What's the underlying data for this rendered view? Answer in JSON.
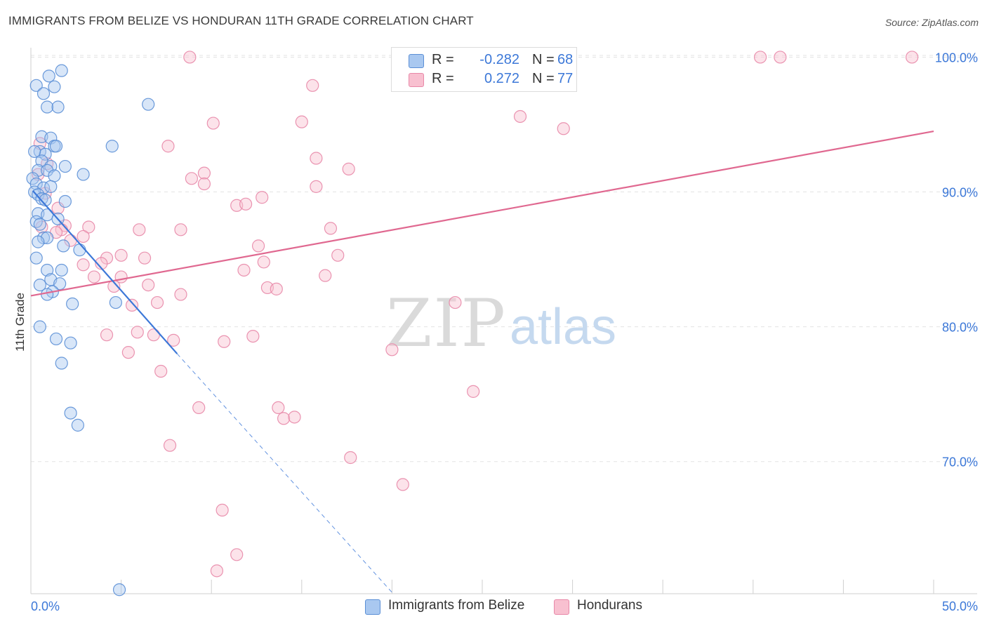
{
  "header": {
    "title": "IMMIGRANTS FROM BELIZE VS HONDURAN 11TH GRADE CORRELATION CHART",
    "source": "Source: ZipAtlas.com"
  },
  "watermark": {
    "zip": "ZIP",
    "atlas": "atlas"
  },
  "legend_top": [
    {
      "r_label": "R =",
      "r_value": "-0.282",
      "n_label": "N =",
      "n_value": "68"
    },
    {
      "r_label": "R =",
      "r_value": "0.272",
      "n_label": "N =",
      "n_value": "77"
    }
  ],
  "legend_bottom": [
    {
      "label": "Immigrants from Belize"
    },
    {
      "label": "Hondurans"
    }
  ],
  "colors": {
    "belize_fill": "#a9c8f0",
    "belize_stroke": "#5b8fd6",
    "belize_line": "#3c78d8",
    "honduran_fill": "#f8c0d0",
    "honduran_stroke": "#e888a8",
    "honduran_line": "#e06890",
    "tick_label": "#3c78d8",
    "grid": "#e3e3e3"
  },
  "chart_data": {
    "type": "scatter",
    "title": "IMMIGRANTS FROM BELIZE VS HONDURAN 11TH GRADE CORRELATION CHART",
    "xlabel": "",
    "ylabel": "11th Grade",
    "xlim": [
      0,
      50
    ],
    "ylim": [
      60.2,
      100.7
    ],
    "x_tick_labels": [
      "0.0%",
      "50.0%"
    ],
    "y_ticks": [
      70,
      80,
      90,
      100
    ],
    "y_tick_labels": [
      "70.0%",
      "80.0%",
      "90.0%",
      "100.0%"
    ],
    "grid": true,
    "legend_position": "top-center",
    "series": [
      {
        "name": "Immigrants from Belize",
        "r": -0.282,
        "n": 68,
        "trend": {
          "x": [
            0.1,
            8.1
          ],
          "y": [
            90.1,
            78.0
          ],
          "dashed_to": [
            20.0,
            60.3
          ]
        },
        "points": [
          [
            0.3,
            97.9
          ],
          [
            1.7,
            99.0
          ],
          [
            1.0,
            98.6
          ],
          [
            0.7,
            97.3
          ],
          [
            1.3,
            97.8
          ],
          [
            0.9,
            96.3
          ],
          [
            1.5,
            96.3
          ],
          [
            6.5,
            96.5
          ],
          [
            0.6,
            94.1
          ],
          [
            1.1,
            94.0
          ],
          [
            0.5,
            93.0
          ],
          [
            0.8,
            92.8
          ],
          [
            1.3,
            93.4
          ],
          [
            1.4,
            93.4
          ],
          [
            4.5,
            93.4
          ],
          [
            0.2,
            93.0
          ],
          [
            0.6,
            92.3
          ],
          [
            0.4,
            91.6
          ],
          [
            1.1,
            91.9
          ],
          [
            1.9,
            91.9
          ],
          [
            0.9,
            91.6
          ],
          [
            1.3,
            91.2
          ],
          [
            2.9,
            91.3
          ],
          [
            0.1,
            91.0
          ],
          [
            0.3,
            90.6
          ],
          [
            0.7,
            90.3
          ],
          [
            1.1,
            90.4
          ],
          [
            0.2,
            90.0
          ],
          [
            0.4,
            89.8
          ],
          [
            0.6,
            89.5
          ],
          [
            0.8,
            89.4
          ],
          [
            1.9,
            89.3
          ],
          [
            0.4,
            88.4
          ],
          [
            0.9,
            88.3
          ],
          [
            1.5,
            88.0
          ],
          [
            0.3,
            87.8
          ],
          [
            0.5,
            87.6
          ],
          [
            0.7,
            86.6
          ],
          [
            0.9,
            86.6
          ],
          [
            0.4,
            86.3
          ],
          [
            1.8,
            86.0
          ],
          [
            2.7,
            85.7
          ],
          [
            0.3,
            85.1
          ],
          [
            0.9,
            84.2
          ],
          [
            1.7,
            84.2
          ],
          [
            1.1,
            83.5
          ],
          [
            1.6,
            83.2
          ],
          [
            0.5,
            83.1
          ],
          [
            1.2,
            82.6
          ],
          [
            0.9,
            82.4
          ],
          [
            4.7,
            81.8
          ],
          [
            2.3,
            81.7
          ],
          [
            0.5,
            80.0
          ],
          [
            1.4,
            79.1
          ],
          [
            2.2,
            78.8
          ],
          [
            1.7,
            77.3
          ],
          [
            2.2,
            73.6
          ],
          [
            2.6,
            72.7
          ],
          [
            4.9,
            60.5
          ]
        ]
      },
      {
        "name": "Hondurans",
        "r": 0.272,
        "n": 77,
        "trend": {
          "x": [
            0.0,
            50.0
          ],
          "y": [
            82.3,
            94.5
          ]
        },
        "points": [
          [
            8.8,
            100.0
          ],
          [
            28.4,
            100.0
          ],
          [
            40.4,
            100.0
          ],
          [
            41.5,
            100.0
          ],
          [
            48.8,
            100.0
          ],
          [
            15.6,
            97.9
          ],
          [
            15.0,
            95.2
          ],
          [
            27.1,
            95.6
          ],
          [
            10.1,
            95.1
          ],
          [
            29.5,
            94.7
          ],
          [
            0.5,
            93.6
          ],
          [
            7.6,
            93.4
          ],
          [
            15.8,
            92.5
          ],
          [
            0.9,
            92.1
          ],
          [
            17.6,
            91.7
          ],
          [
            0.4,
            91.3
          ],
          [
            9.6,
            91.4
          ],
          [
            8.9,
            91.0
          ],
          [
            9.6,
            90.6
          ],
          [
            15.8,
            90.4
          ],
          [
            0.8,
            89.9
          ],
          [
            12.8,
            89.6
          ],
          [
            11.4,
            89.0
          ],
          [
            11.9,
            89.1
          ],
          [
            1.5,
            88.8
          ],
          [
            1.9,
            87.5
          ],
          [
            0.6,
            87.4
          ],
          [
            1.7,
            87.2
          ],
          [
            3.2,
            87.4
          ],
          [
            6.0,
            87.2
          ],
          [
            8.3,
            87.2
          ],
          [
            16.6,
            87.3
          ],
          [
            1.4,
            87.0
          ],
          [
            2.9,
            86.7
          ],
          [
            2.2,
            86.4
          ],
          [
            12.6,
            86.0
          ],
          [
            4.2,
            85.1
          ],
          [
            5.0,
            85.3
          ],
          [
            6.3,
            85.1
          ],
          [
            17.0,
            85.3
          ],
          [
            2.9,
            84.6
          ],
          [
            3.9,
            84.7
          ],
          [
            12.9,
            84.8
          ],
          [
            11.8,
            84.2
          ],
          [
            3.5,
            83.7
          ],
          [
            5.0,
            83.7
          ],
          [
            16.3,
            83.8
          ],
          [
            4.6,
            83.0
          ],
          [
            6.5,
            83.1
          ],
          [
            13.1,
            82.9
          ],
          [
            13.6,
            82.8
          ],
          [
            8.3,
            82.4
          ],
          [
            7.0,
            81.8
          ],
          [
            5.6,
            81.6
          ],
          [
            23.5,
            81.8
          ],
          [
            4.2,
            79.4
          ],
          [
            5.9,
            79.6
          ],
          [
            6.8,
            79.4
          ],
          [
            7.9,
            79.0
          ],
          [
            10.7,
            78.9
          ],
          [
            12.3,
            79.3
          ],
          [
            5.4,
            78.1
          ],
          [
            20.0,
            78.3
          ],
          [
            7.2,
            76.7
          ],
          [
            24.5,
            75.2
          ],
          [
            9.3,
            74.0
          ],
          [
            13.7,
            74.0
          ],
          [
            14.0,
            73.2
          ],
          [
            14.6,
            73.3
          ],
          [
            7.7,
            71.2
          ],
          [
            17.7,
            70.3
          ],
          [
            20.6,
            68.3
          ],
          [
            10.6,
            66.4
          ],
          [
            11.4,
            63.1
          ],
          [
            10.3,
            61.9
          ]
        ]
      }
    ]
  }
}
